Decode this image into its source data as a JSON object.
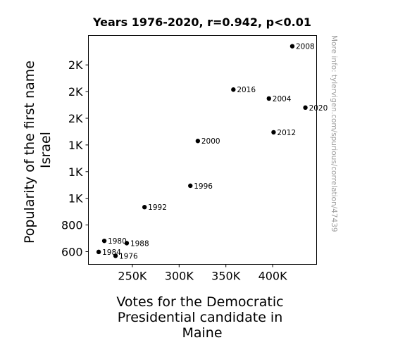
{
  "chart_data": {
    "type": "scatter",
    "title": "Years 1976-2020, r=0.942, p<0.01",
    "xlabel": [
      "Votes for the Democratic",
      "Presidential candidate in",
      "Maine"
    ],
    "ylabel": [
      "Popularity of the first name",
      "Israel"
    ],
    "xlim": [
      203000,
      447000
    ],
    "ylim": [
      505,
      2220
    ],
    "x_ticks": [
      {
        "value": 250000,
        "label": "250K"
      },
      {
        "value": 300000,
        "label": "300K"
      },
      {
        "value": 350000,
        "label": "350K"
      },
      {
        "value": 400000,
        "label": "400K"
      }
    ],
    "y_ticks": [
      {
        "value": 600,
        "label": "600"
      },
      {
        "value": 800,
        "label": "800"
      },
      {
        "value": 1000,
        "label": "1K"
      },
      {
        "value": 1200,
        "label": "1K"
      },
      {
        "value": 1400,
        "label": "1K"
      },
      {
        "value": 1600,
        "label": "2K"
      },
      {
        "value": 1800,
        "label": "2K"
      },
      {
        "value": 2000,
        "label": "2K"
      }
    ],
    "points": [
      {
        "label": "1976",
        "x": 232000,
        "y": 569
      },
      {
        "label": "1980",
        "x": 220000,
        "y": 681
      },
      {
        "label": "1984",
        "x": 214000,
        "y": 598
      },
      {
        "label": "1988",
        "x": 244000,
        "y": 664
      },
      {
        "label": "1992",
        "x": 263000,
        "y": 934
      },
      {
        "label": "1996",
        "x": 312000,
        "y": 1094
      },
      {
        "label": "2000",
        "x": 320000,
        "y": 1430
      },
      {
        "label": "2004",
        "x": 396000,
        "y": 1748
      },
      {
        "label": "2008",
        "x": 421000,
        "y": 2140
      },
      {
        "label": "2012",
        "x": 401000,
        "y": 1495
      },
      {
        "label": "2016",
        "x": 358000,
        "y": 1815
      },
      {
        "label": "2020",
        "x": 435000,
        "y": 1680
      }
    ]
  },
  "watermark": "More info: tylervigen.com/spurious/correlation/47439"
}
